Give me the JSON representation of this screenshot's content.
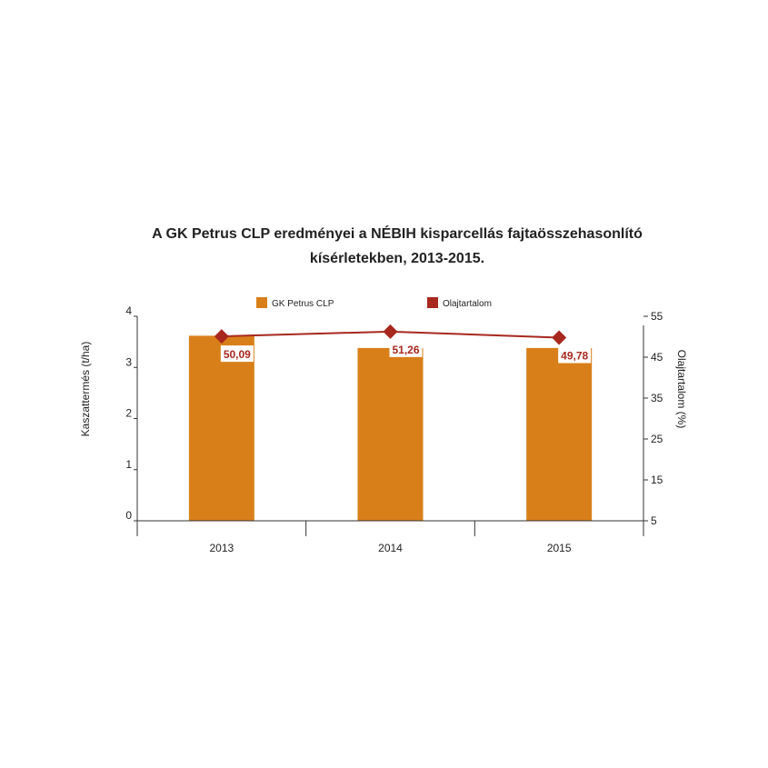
{
  "chart_data": {
    "type": "bar",
    "title_line1": "A GK Petrus CLP eredményei a NÉBIH kisparcellás fajtaösszehasonlító",
    "title_line2": "kísérletekben, 2013-2015.",
    "categories": [
      "2013",
      "2014",
      "2015"
    ],
    "series": [
      {
        "name": "GK Petrus CLP",
        "type": "bar",
        "axis": "left",
        "values": [
          3.62,
          3.38,
          3.38
        ],
        "color": "#d97f1a"
      },
      {
        "name": "Olajtartalom",
        "type": "line",
        "axis": "right",
        "values": [
          50.09,
          51.26,
          49.78
        ],
        "labels": [
          "50,09",
          "51,26",
          "49,78"
        ],
        "color": "#a8281e"
      }
    ],
    "y_left": {
      "label": "Kaszattermés (t/ha)",
      "range": [
        0,
        4
      ],
      "ticks": [
        "0",
        "1",
        "2",
        "3",
        "4"
      ]
    },
    "y_right": {
      "label": "Olajtartalom (%)",
      "range": [
        5,
        55
      ],
      "ticks": [
        "5",
        "15",
        "25",
        "35",
        "45",
        "55"
      ]
    },
    "grid": false,
    "legend": "top"
  }
}
